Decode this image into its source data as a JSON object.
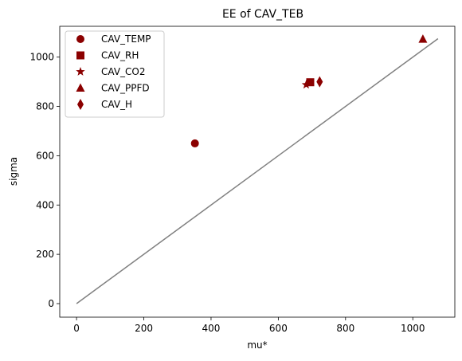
{
  "chart_data": {
    "type": "scatter",
    "title": "EE of CAV_TEB",
    "xlabel": "mu*",
    "ylabel": "sigma",
    "xlim": [
      -50,
      1125
    ],
    "ylim": [
      -55,
      1125
    ],
    "xticks": [
      0,
      200,
      400,
      600,
      800,
      1000
    ],
    "yticks": [
      0,
      200,
      400,
      600,
      800,
      1000
    ],
    "grid": false,
    "legend_position": "top-left",
    "marker_color": "#8b0000",
    "line_color": "#808080",
    "reference_line": {
      "x": [
        0,
        1075
      ],
      "y": [
        0,
        1075
      ]
    },
    "series": [
      {
        "name": "CAV_TEMP",
        "marker": "circle",
        "x": [
          352
        ],
        "y": [
          650
        ]
      },
      {
        "name": "CAV_RH",
        "marker": "square",
        "x": [
          695
        ],
        "y": [
          898
        ]
      },
      {
        "name": "CAV_CO2",
        "marker": "star",
        "x": [
          683
        ],
        "y": [
          888
        ]
      },
      {
        "name": "CAV_PPFD",
        "marker": "triangle",
        "x": [
          1030
        ],
        "y": [
          1073
        ]
      },
      {
        "name": "CAV_H",
        "marker": "diamond",
        "x": [
          723
        ],
        "y": [
          900
        ]
      }
    ]
  }
}
